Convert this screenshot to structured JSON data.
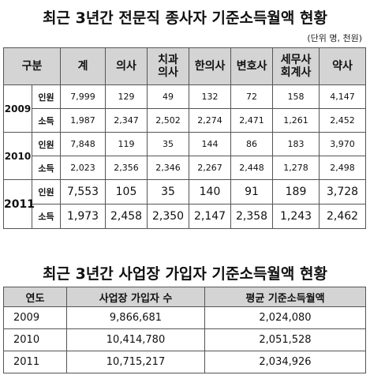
{
  "table1": {
    "title": "최근 3년간 전문직 종사자 기준소득월액 현황",
    "unit_note": "(단위 명, 천원)",
    "headers": [
      "구분",
      "계",
      "의사",
      "치과\n의사",
      "한의사",
      "변호사",
      "세무사\n회계사",
      "약사"
    ],
    "groups": [
      {
        "year": "2009",
        "rows": [
          {
            "label": "인원",
            "values": [
              "7,999",
              "129",
              "49",
              "132",
              "72",
              "158",
              "4,147"
            ]
          },
          {
            "label": "소득",
            "values": [
              "1,987",
              "2,347",
              "2,502",
              "2,274",
              "2,471",
              "1,261",
              "2,452"
            ]
          }
        ]
      },
      {
        "year": "2010",
        "rows": [
          {
            "label": "인원",
            "values": [
              "7,848",
              "119",
              "35",
              "144",
              "86",
              "183",
              "3,970"
            ]
          },
          {
            "label": "소득",
            "values": [
              "2,023",
              "2,356",
              "2,346",
              "2,267",
              "2,448",
              "1,278",
              "2,498"
            ]
          }
        ]
      },
      {
        "year": "2011",
        "rows": [
          {
            "label": "인원",
            "values": [
              "7,553",
              "105",
              "35",
              "140",
              "91",
              "189",
              "3,728"
            ]
          },
          {
            "label": "소득",
            "values": [
              "1,973",
              "2,458",
              "2,350",
              "2,147",
              "2,358",
              "1,243",
              "2,462"
            ]
          }
        ]
      }
    ]
  },
  "table2": {
    "title": "최근 3년간 사업장 가입자 기준소득월액 현황",
    "headers": [
      "연도",
      "사업장 가입자 수",
      "평균 기준소득월액"
    ],
    "rows": [
      {
        "year": "2009",
        "members": "9,866,681",
        "avg_income": "2,024,080"
      },
      {
        "year": "2010",
        "members": "10,414,780",
        "avg_income": "2,051,528"
      },
      {
        "year": "2011",
        "members": "10,715,217",
        "avg_income": "2,034,926"
      }
    ]
  }
}
